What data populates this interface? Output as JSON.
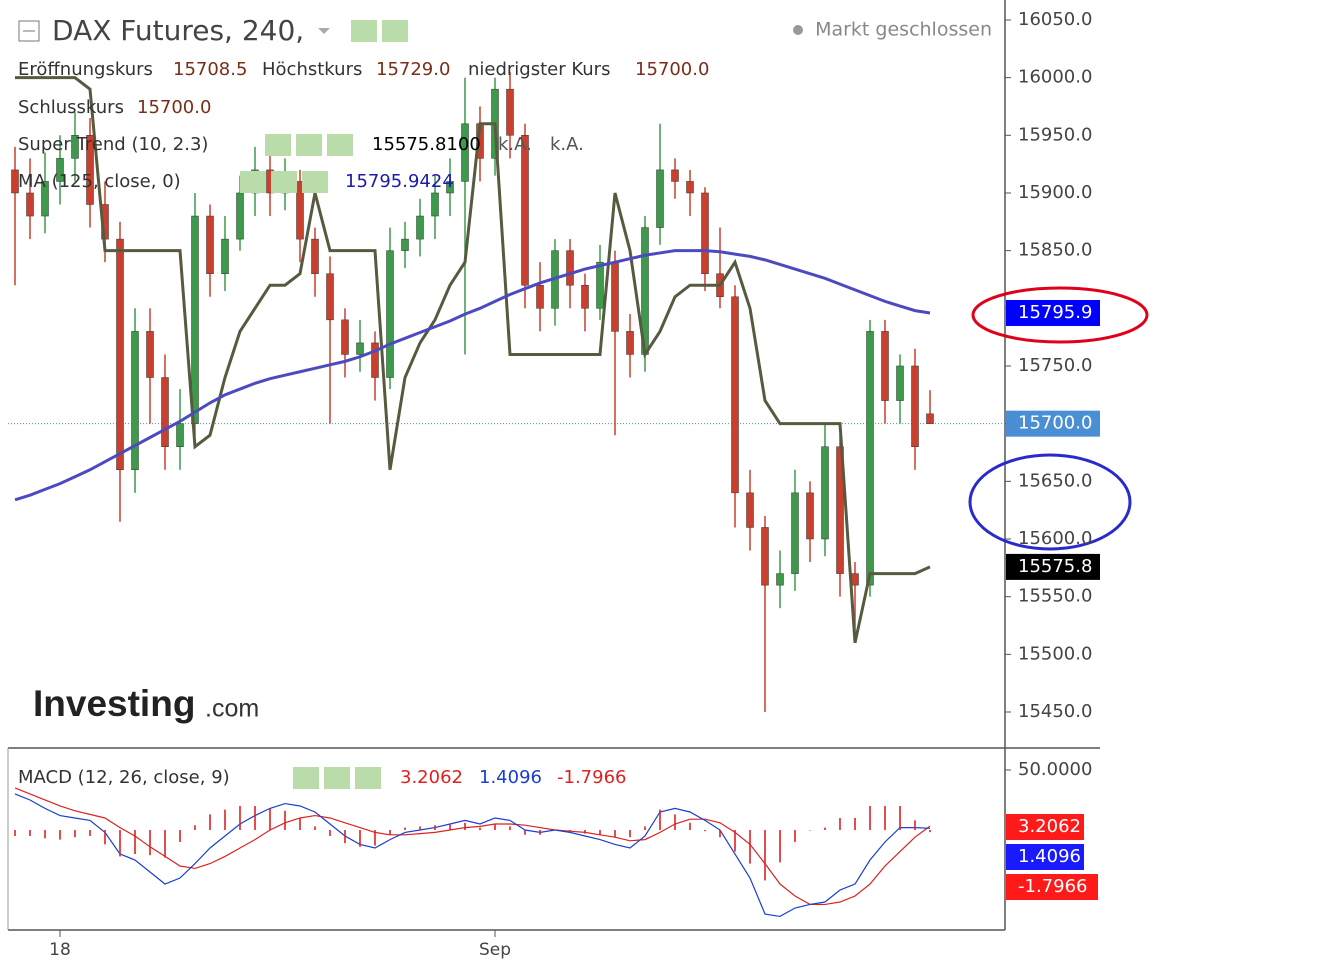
{
  "chart_data": [
    {
      "type": "candlestick",
      "title": "DAX Futures, 240,",
      "status": "Markt geschlossen",
      "legend": {
        "open_label": "Eröffnungskurs",
        "open": "15708.5",
        "high_label": "Höchstkurs",
        "high": "15729.0",
        "low_label": "niedrigster Kurs",
        "low": "15700.0",
        "close_label": "Schlusskurs",
        "close": "15700.0"
      },
      "watermark": "Investing",
      "watermark_suffix": ".com",
      "categories": [
        null,
        null,
        null,
        "18",
        null,
        null,
        null,
        null,
        null,
        null,
        null,
        null,
        null,
        null,
        null,
        null,
        null,
        null,
        null,
        null,
        null,
        null,
        null,
        null,
        null,
        null,
        null,
        null,
        null,
        null,
        null,
        null,
        "Sep",
        null,
        null,
        null,
        null,
        null,
        null,
        null,
        null,
        null,
        null,
        null,
        null,
        null,
        null,
        null,
        null,
        null,
        null,
        null,
        null,
        null,
        null,
        null,
        null,
        null,
        null,
        null,
        null,
        null
      ],
      "open": [
        15920,
        15900,
        15880,
        15910,
        15930,
        15950,
        15890,
        15860,
        15660,
        15780,
        15740,
        15680,
        15700,
        15880,
        15830,
        15860,
        15900,
        15920,
        15900,
        15910,
        15860,
        15830,
        15790,
        15760,
        15770,
        15740,
        15850,
        15860,
        15880,
        15900,
        15910,
        15960,
        15930,
        15990,
        15950,
        15820,
        15800,
        15850,
        15820,
        15800,
        15840,
        15780,
        15760,
        15870,
        15920,
        15910,
        15900,
        15830,
        15810,
        15640,
        15610,
        15560,
        15570,
        15640,
        15600,
        15680,
        15570,
        15560,
        15780,
        15720,
        15750,
        15708.5
      ],
      "high": [
        15940,
        15930,
        15935,
        15950,
        15970,
        15965,
        15910,
        15875,
        15800,
        15800,
        15760,
        15730,
        15900,
        15890,
        15880,
        15915,
        15940,
        15935,
        15930,
        15920,
        15870,
        15845,
        15800,
        15790,
        15780,
        15870,
        15875,
        15895,
        15915,
        15930,
        16000,
        15975,
        16000,
        16005,
        15960,
        15840,
        15860,
        15860,
        15830,
        15855,
        15850,
        15795,
        15880,
        15960,
        15930,
        15920,
        15905,
        15870,
        15820,
        15660,
        15620,
        15590,
        15660,
        15650,
        15700,
        15690,
        15580,
        15790,
        15790,
        15760,
        15765,
        15729
      ],
      "low": [
        15820,
        15860,
        15865,
        15890,
        15910,
        15870,
        15840,
        15615,
        15640,
        15700,
        15660,
        15660,
        15690,
        15810,
        15815,
        15850,
        15880,
        15880,
        15885,
        15840,
        15810,
        15700,
        15740,
        15745,
        15720,
        15730,
        15835,
        15845,
        15860,
        15880,
        15760,
        15910,
        15915,
        15930,
        15800,
        15780,
        15785,
        15800,
        15780,
        15790,
        15690,
        15740,
        15745,
        15855,
        15895,
        15880,
        15815,
        15800,
        15610,
        15590,
        15450,
        15540,
        15555,
        15580,
        15585,
        15550,
        15510,
        15550,
        15700,
        15700,
        15660,
        15700
      ],
      "close": [
        15900,
        15880,
        15910,
        15930,
        15950,
        15890,
        15860,
        15660,
        15780,
        15740,
        15680,
        15700,
        15880,
        15830,
        15860,
        15900,
        15920,
        15900,
        15910,
        15860,
        15830,
        15790,
        15760,
        15770,
        15740,
        15850,
        15860,
        15880,
        15900,
        15910,
        15960,
        15930,
        15990,
        15950,
        15820,
        15800,
        15850,
        15820,
        15800,
        15840,
        15780,
        15760,
        15870,
        15920,
        15910,
        15900,
        15830,
        15810,
        15640,
        15610,
        15560,
        15570,
        15640,
        15600,
        15680,
        15570,
        15560,
        15780,
        15720,
        15750,
        15680,
        15700
      ],
      "up_color": "#3d9a4b",
      "down_color": "#c9402f",
      "lines": [
        {
          "name": "Super Trend (10, 2.3)",
          "value_label": "15575.8100",
          "extra": [
            "k.A.",
            "k.A."
          ],
          "color": "#565a3e",
          "values": [
            16000,
            16000,
            16000,
            16000,
            16000,
            15990,
            15850,
            15850,
            15850,
            15850,
            15850,
            15850,
            15680,
            15690,
            15740,
            15780,
            15800,
            15820,
            15820,
            15830,
            15900,
            15850,
            15850,
            15850,
            15850,
            15660,
            15740,
            15770,
            15790,
            15820,
            15840,
            15960,
            15960,
            15760,
            15760,
            15760,
            15760,
            15760,
            15760,
            15760,
            15900,
            15850,
            15760,
            15780,
            15810,
            15820,
            15820,
            15820,
            15840,
            15800,
            15720,
            15700,
            15700,
            15700,
            15700,
            15700,
            15510,
            15570,
            15570,
            15570,
            15570,
            15575.81
          ]
        },
        {
          "name": "MA (125, close, 0)",
          "value_label": "15795.9424",
          "color": "#4b4bbf",
          "values": [
            15634,
            15638,
            15643,
            15648,
            15654,
            15660,
            15667,
            15674,
            15681,
            15688,
            15695,
            15702,
            15710,
            15718,
            15725,
            15730,
            15735,
            15739,
            15742,
            15745,
            15748,
            15751,
            15754,
            15758,
            15763,
            15769,
            15774,
            15779,
            15784,
            15789,
            15795,
            15800,
            15806,
            15812,
            15817,
            15822,
            15826,
            15830,
            15834,
            15837,
            15840,
            15843,
            15846,
            15848,
            15850,
            15850,
            15850,
            15849,
            15847,
            15845,
            15842,
            15838,
            15834,
            15830,
            15826,
            15821,
            15816,
            15811,
            15806,
            15802,
            15798,
            15795.94
          ]
        }
      ],
      "price_labels": [
        {
          "value": 15795.9424,
          "label": "15795.9",
          "color": "#0000ff"
        },
        {
          "value": 15700,
          "label": "15700.0",
          "color": "#4a8fd4"
        },
        {
          "value": 15575.81,
          "label": "15575.8",
          "color": "#000000"
        }
      ],
      "ylim": [
        15418.8,
        16067.3
      ],
      "yticks": [
        {
          "value": 16050,
          "label": "16050.0"
        },
        {
          "value": 16000,
          "label": "16000.0"
        },
        {
          "value": 15950,
          "label": "15950.0"
        },
        {
          "value": 15900,
          "label": "15900.0"
        },
        {
          "value": 15850,
          "label": "15850.0"
        },
        {
          "value": 15800,
          "label": "15800.0"
        },
        {
          "value": 15750,
          "label": "15750.0"
        },
        {
          "value": 15700,
          "label": "15700.0"
        },
        {
          "value": 15650,
          "label": "15650.0"
        },
        {
          "value": 15600,
          "label": "15600.0"
        },
        {
          "value": 15550,
          "label": "15550.0"
        },
        {
          "value": 15500,
          "label": "15500.0"
        },
        {
          "value": 15450,
          "label": "15450.0"
        }
      ]
    },
    {
      "type": "macd",
      "title": "MACD (12, 26, close, 9)",
      "series": [
        {
          "color": "#dd2222",
          "style": "line",
          "values": [
            35,
            30,
            25,
            20,
            16,
            13,
            10,
            2,
            -5,
            -14,
            -22,
            -30,
            -32,
            -28,
            -22,
            -15,
            -8,
            0,
            6,
            10,
            12,
            10,
            6,
            2,
            -2,
            -4,
            -4,
            -3,
            -2,
            0,
            2,
            3,
            5,
            5,
            4,
            2,
            0,
            -1,
            -2,
            -4,
            -6,
            -9,
            -8,
            -2,
            5,
            9,
            9,
            6,
            -2,
            -12,
            -28,
            -45,
            -55,
            -62,
            -62,
            -60,
            -55,
            -45,
            -30,
            -18,
            -6,
            3.2062
          ]
        },
        {
          "color": "#1a3fd0",
          "style": "line",
          "values": [
            30,
            25,
            18,
            12,
            10,
            8,
            -2,
            -20,
            -25,
            -35,
            -45,
            -40,
            -28,
            -15,
            -5,
            5,
            12,
            18,
            22,
            20,
            15,
            5,
            -5,
            -12,
            -15,
            -8,
            -2,
            0,
            2,
            5,
            8,
            5,
            10,
            8,
            0,
            -2,
            0,
            -2,
            -5,
            -8,
            -12,
            -15,
            -5,
            15,
            18,
            15,
            8,
            0,
            -20,
            -40,
            -70,
            -72,
            -65,
            -62,
            -60,
            -50,
            -45,
            -25,
            -10,
            2,
            2,
            1.4096
          ]
        },
        {
          "color": "#dd2222",
          "style": "bars",
          "values": [
            -5,
            -5,
            -7,
            -8,
            -6,
            -5,
            -12,
            -22,
            -20,
            -21,
            -23,
            -10,
            4,
            13,
            17,
            20,
            20,
            18,
            16,
            10,
            3,
            -5,
            -11,
            -14,
            -13,
            -4,
            2,
            3,
            4,
            5,
            6,
            2,
            5,
            3,
            -4,
            -4,
            0,
            -1,
            -3,
            -4,
            -6,
            -6,
            3,
            17,
            13,
            6,
            -1,
            -6,
            -18,
            -28,
            -42,
            -27,
            -10,
            0,
            2,
            10,
            10,
            20,
            20,
            20,
            8,
            -1.7966
          ]
        }
      ],
      "ylim": [
        -83.3,
        68.3
      ],
      "yticks": [
        {
          "value": 50,
          "label": "50.0000"
        }
      ]
    }
  ]
}
